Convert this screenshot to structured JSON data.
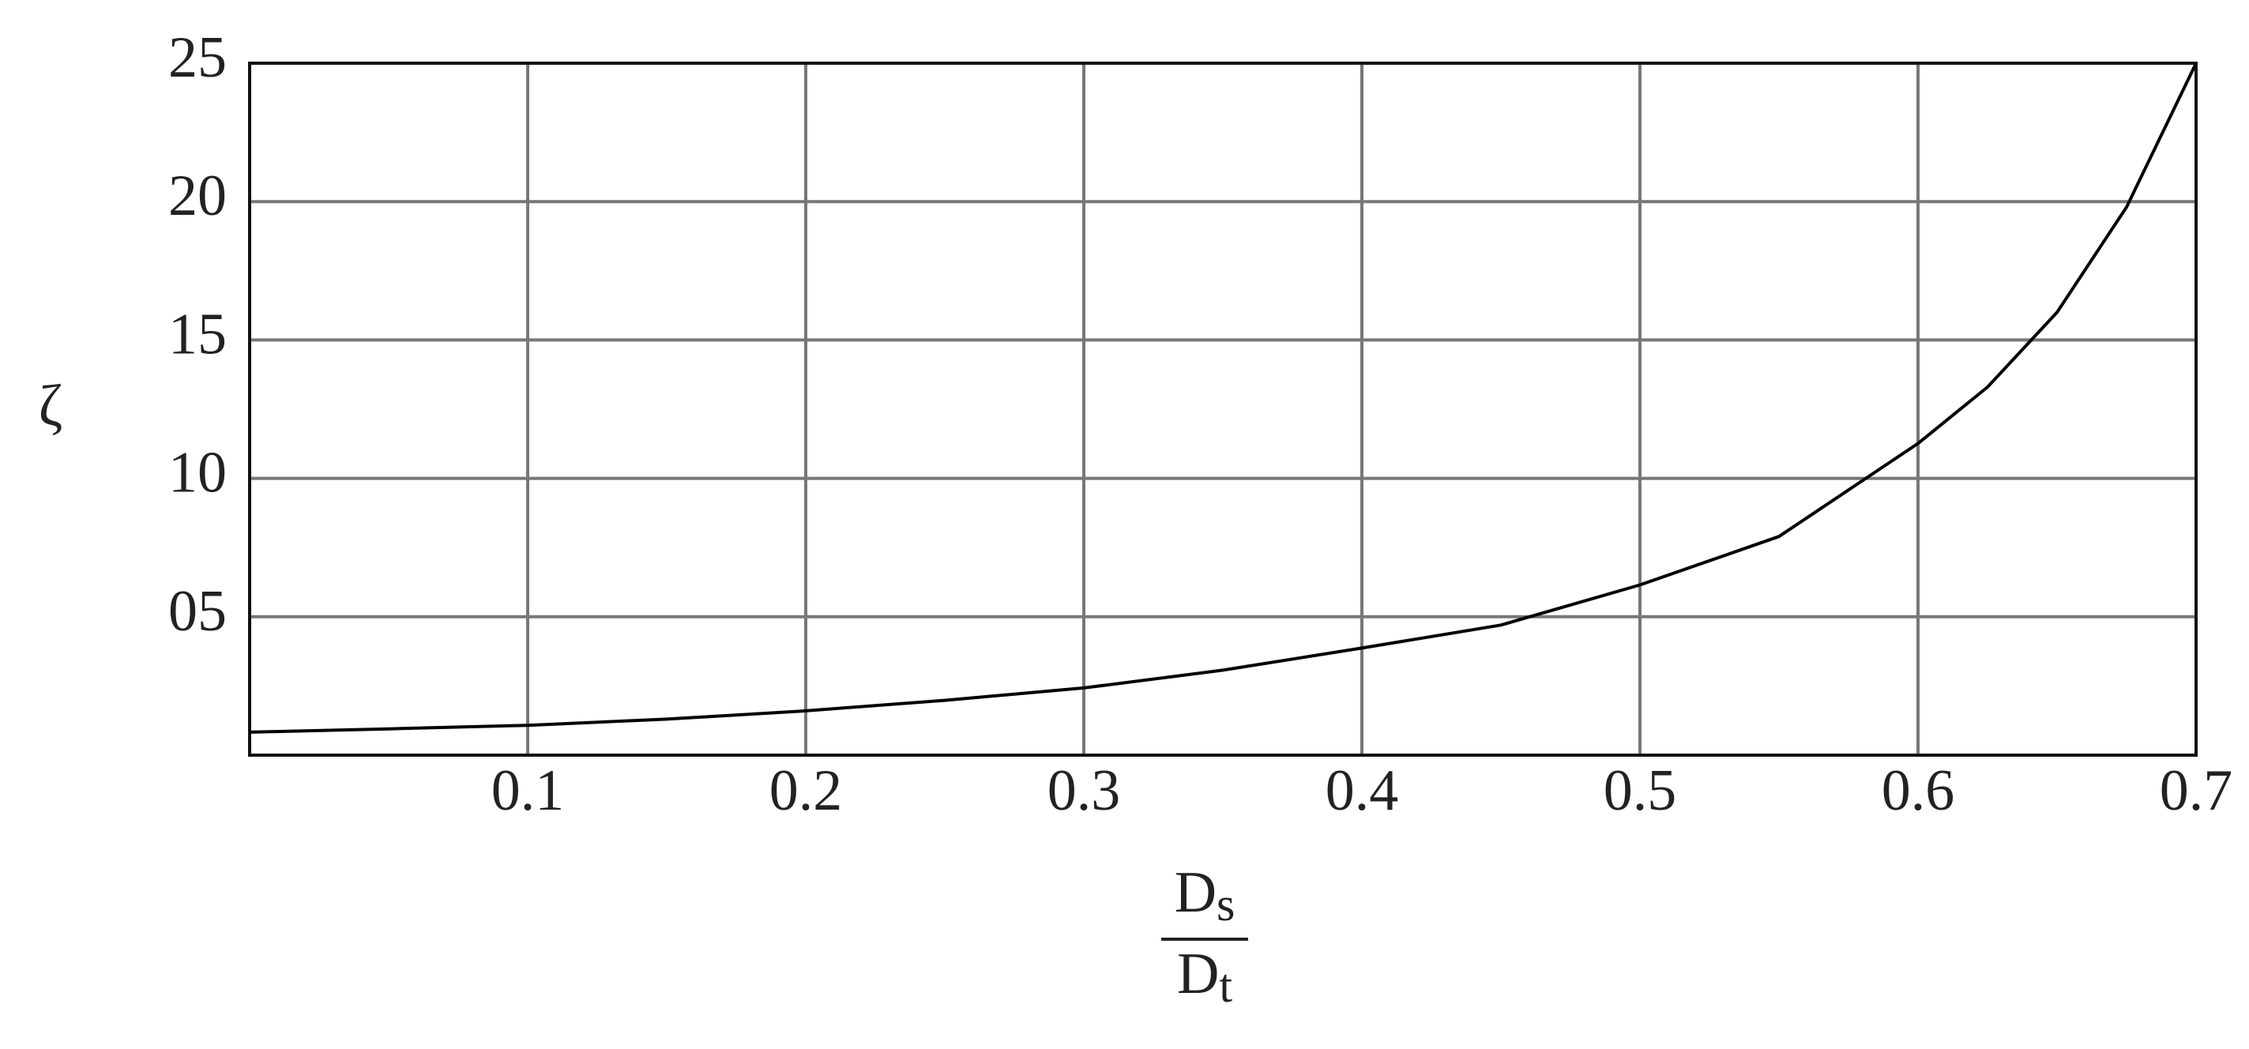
{
  "chart_data": {
    "type": "line",
    "ylabel": "ζ",
    "xlabel": {
      "numerator": {
        "base": "D",
        "sub": "s"
      },
      "denominator": {
        "base": "D",
        "sub": "t"
      }
    },
    "x": [
      0,
      0.05,
      0.1,
      0.15,
      0.2,
      0.25,
      0.3,
      0.35,
      0.4,
      0.45,
      0.5,
      0.55,
      0.6,
      0.625,
      0.65,
      0.675,
      0.7
    ],
    "values": [
      0.83,
      0.95,
      1.08,
      1.3,
      1.6,
      1.98,
      2.43,
      3.07,
      3.87,
      4.7,
      6.15,
      7.9,
      11.26,
      13.3,
      16,
      19.8,
      25
    ],
    "color": "#000000",
    "xlim": [
      0,
      0.7
    ],
    "ylim": [
      0,
      25
    ],
    "xticks": [
      0.1,
      0.2,
      0.3,
      0.4,
      0.5,
      0.6,
      0.7
    ],
    "yticks": [
      {
        "value": 5,
        "label": "05"
      },
      10,
      15,
      20,
      25
    ],
    "grid": true
  }
}
